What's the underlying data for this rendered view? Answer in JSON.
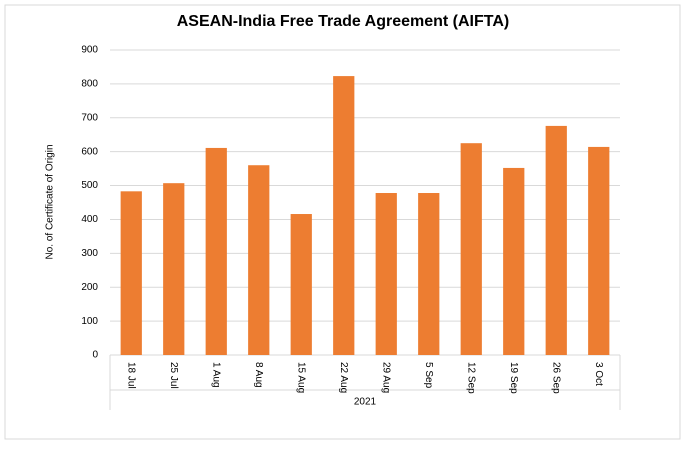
{
  "chart_data": {
    "type": "bar",
    "title": "ASEAN-India Free Trade Agreement (AIFTA)",
    "ylabel": "No. of Certificate of Origin",
    "x_group": "2021",
    "categories": [
      "18 Jul",
      "25 Jul",
      "1 Aug",
      "8 Aug",
      "15 Aug",
      "22 Aug",
      "29 Aug",
      "5 Sep",
      "12 Sep",
      "19 Sep",
      "26 Sep",
      "3 Oct"
    ],
    "values": [
      483,
      507,
      611,
      560,
      416,
      823,
      478,
      478,
      625,
      552,
      676,
      614
    ],
    "color": "#ed7d31",
    "ylim": [
      0,
      900
    ],
    "yticks": [
      0,
      100,
      200,
      300,
      400,
      500,
      600,
      700,
      800,
      900
    ],
    "grid": true
  }
}
